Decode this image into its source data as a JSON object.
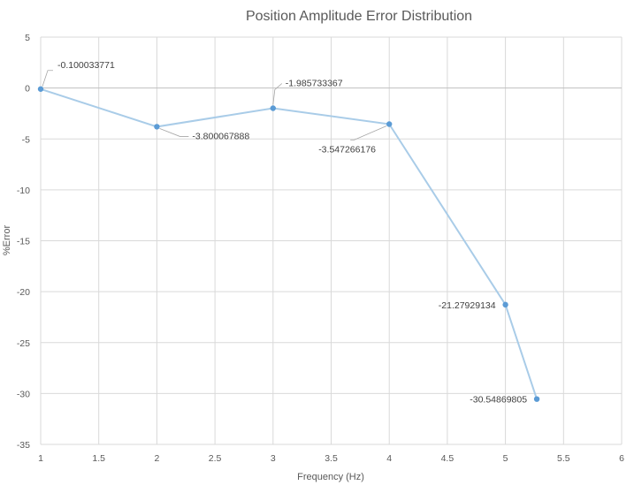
{
  "chart_data": {
    "type": "scatter",
    "title": "Position Amplitude Error Distribution",
    "xlabel": "Frequency (Hz)",
    "ylabel": "%Error",
    "xlim": [
      1,
      6
    ],
    "ylim": [
      -35,
      5
    ],
    "x_ticks": [
      "1",
      "1.5",
      "2",
      "2.5",
      "3",
      "3.5",
      "4",
      "4.5",
      "5",
      "5.5",
      "6"
    ],
    "y_ticks": [
      "5",
      "0",
      "-5",
      "-10",
      "-15",
      "-20",
      "-25",
      "-30",
      "-35"
    ],
    "grid": true,
    "legend": false,
    "line_color": "#A9CCE8",
    "marker_color": "#5B9BD5",
    "series": [
      {
        "x": [
          1,
          2,
          3,
          4,
          5,
          5.27
        ],
        "y": [
          -0.100033771,
          -3.800067888,
          -1.985733367,
          -3.547266176,
          -21.27929134,
          -30.54869805
        ],
        "labels": [
          "-0.100033771",
          "-3.800067888",
          "-1.985733367",
          "-3.547266176",
          "-21.27929134",
          "-30.54869805"
        ]
      }
    ]
  }
}
